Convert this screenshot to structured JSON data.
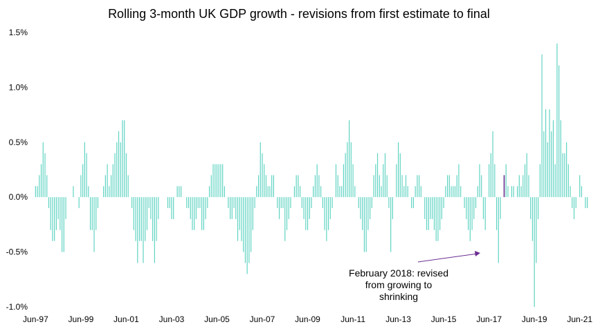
{
  "chart_data": {
    "type": "bar",
    "title": "Rolling 3-month UK GDP growth - revisions from first estimate to final",
    "xlabel": "",
    "ylabel": "",
    "ylim": [
      -1.0,
      1.5
    ],
    "yticks": [
      -1.0,
      -0.5,
      0.0,
      0.5,
      1.0,
      1.5
    ],
    "ytick_labels": [
      "-1.0%",
      "-0.5%",
      "0.0%",
      "0.5%",
      "1.0%",
      "1.5%"
    ],
    "xtick_labels": [
      "Jun-97",
      "Jun-99",
      "Jun-01",
      "Jun-03",
      "Jun-05",
      "Jun-07",
      "Jun-09",
      "Jun-11",
      "Jun-13",
      "Jun-15",
      "Jun-17",
      "Jun-19",
      "Jun-21"
    ],
    "start": "Jun-97",
    "grid": false,
    "legend": "none",
    "bar_color": "#5fd3c2",
    "highlight_color": "#6a2c91",
    "highlight_index": 248,
    "values": [
      0.1,
      0.1,
      0.2,
      0.3,
      0.5,
      0.4,
      0.2,
      -0.1,
      -0.3,
      -0.4,
      -0.4,
      -0.3,
      -0.2,
      -0.3,
      -0.5,
      -0.5,
      -0.2,
      0.0,
      0.0,
      0.0,
      0.1,
      0.0,
      0.0,
      -0.1,
      0.2,
      0.3,
      0.5,
      0.4,
      0.1,
      -0.3,
      -0.3,
      -0.5,
      -0.3,
      -0.1,
      0.0,
      0.0,
      0.1,
      0.2,
      0.3,
      0.1,
      0.2,
      0.3,
      0.4,
      0.5,
      0.6,
      0.5,
      0.7,
      0.7,
      0.4,
      0.2,
      0.0,
      -0.1,
      -0.3,
      -0.4,
      -0.6,
      -0.4,
      -0.4,
      -0.6,
      -0.4,
      -0.3,
      -0.1,
      -0.2,
      -0.4,
      -0.6,
      -0.4,
      -0.2,
      0.0,
      0.0,
      0.0,
      0.0,
      -0.1,
      -0.1,
      -0.2,
      -0.2,
      0.0,
      0.1,
      0.1,
      0.1,
      0.0,
      0.0,
      -0.1,
      -0.1,
      -0.2,
      -0.3,
      -0.3,
      -0.2,
      -0.1,
      -0.1,
      -0.3,
      -0.3,
      -0.2,
      -0.1,
      0.1,
      0.2,
      0.3,
      0.3,
      0.3,
      0.3,
      0.3,
      0.3,
      0.1,
      0.0,
      -0.1,
      -0.2,
      -0.2,
      -0.1,
      -0.2,
      -0.4,
      -0.3,
      -0.4,
      -0.5,
      -0.6,
      -0.7,
      -0.6,
      -0.5,
      -0.3,
      -0.1,
      0.1,
      0.2,
      0.5,
      0.4,
      0.3,
      0.2,
      0.1,
      0.1,
      0.2,
      0.2,
      0.0,
      -0.1,
      -0.2,
      -0.1,
      -0.1,
      -0.4,
      -0.3,
      -0.2,
      -0.1,
      0.0,
      0.1,
      0.2,
      0.2,
      0.1,
      -0.1,
      -0.2,
      -0.3,
      -0.3,
      -0.2,
      -0.1,
      0.1,
      0.2,
      0.3,
      0.2,
      0.1,
      -0.1,
      -0.3,
      -0.4,
      -0.3,
      -0.2,
      -0.1,
      0.0,
      0.3,
      0.2,
      0.1,
      0.1,
      0.3,
      0.4,
      0.5,
      0.7,
      0.5,
      0.3,
      0.1,
      0.0,
      -0.1,
      -0.2,
      -0.3,
      -0.5,
      -0.5,
      -0.3,
      -0.2,
      -0.1,
      0.2,
      0.3,
      0.4,
      0.2,
      0.1,
      0.3,
      0.4,
      0.2,
      -0.1,
      -0.5,
      -0.2,
      0.0,
      0.3,
      0.5,
      0.4,
      0.2,
      0.1,
      0.2,
      0.1,
      0.0,
      -0.1,
      -0.1,
      0.1,
      0.2,
      0.2,
      0.1,
      0.0,
      -0.2,
      -0.3,
      -0.3,
      -0.2,
      -0.2,
      -0.3,
      -0.4,
      -0.4,
      -0.3,
      -0.2,
      -0.1,
      0.1,
      0.2,
      0.2,
      0.1,
      0.1,
      0.1,
      0.2,
      0.3,
      0.1,
      0.0,
      -0.1,
      -0.2,
      -0.3,
      -0.4,
      -0.3,
      -0.2,
      -0.1,
      0.1,
      0.3,
      0.2,
      -0.2,
      -0.3,
      0.0,
      0.3,
      0.4,
      0.6,
      0.3,
      -0.3,
      -0.6,
      -0.2,
      0.0,
      0.2,
      0.3,
      0.1,
      0.0,
      0.1,
      0.1,
      0.0,
      0.1,
      0.2,
      0.1,
      0.2,
      0.3,
      0.4,
      0.2,
      -0.2,
      -0.4,
      -1.0,
      -0.6,
      -0.2,
      0.3,
      1.3,
      0.6,
      0.8,
      0.5,
      0.8,
      0.6,
      0.7,
      0.3,
      1.4,
      1.2,
      0.7,
      0.4,
      0.4,
      0.5,
      0.3,
      0.1,
      -0.1,
      -0.2,
      -0.1,
      0.0,
      0.2,
      0.1,
      0.0,
      -0.1,
      -0.1
    ]
  },
  "annotation": {
    "lines": [
      "February 2018: revised",
      "from growing to",
      "shrinking"
    ]
  }
}
